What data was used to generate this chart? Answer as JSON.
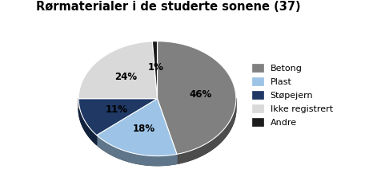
{
  "title": "Rørmaterialer i de studerte sonene (37)",
  "labels": [
    "Betong",
    "Plast",
    "Støpejern",
    "Ikke registrert",
    "Andre"
  ],
  "values": [
    46,
    18,
    11,
    24,
    1
  ],
  "colors": [
    "#808080",
    "#9DC3E6",
    "#1F3864",
    "#D9D9D9",
    "#1C1C1C"
  ],
  "edge_colors": [
    "#595959",
    "#6B9EC4",
    "#162850",
    "#A6A6A6",
    "#111111"
  ],
  "pct_labels": [
    "46%",
    "18%",
    "11%",
    "24%",
    "1%"
  ],
  "startangle": 90,
  "legend_labels": [
    "Betong",
    "Plast",
    "Støpejern",
    "Ikke registrert",
    "Andre"
  ]
}
